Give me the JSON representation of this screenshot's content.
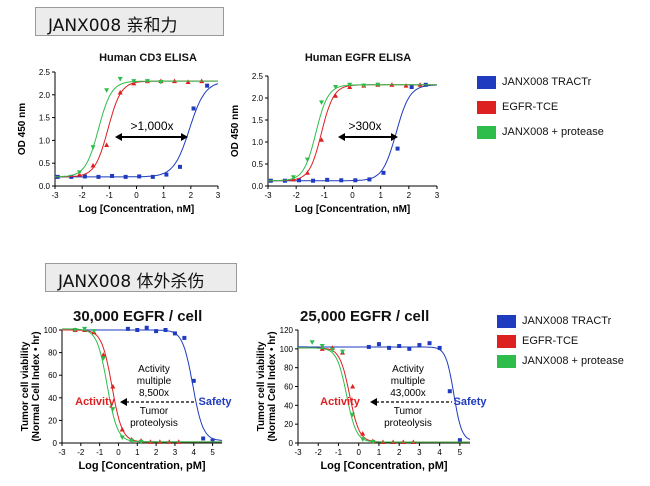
{
  "sections": {
    "binding": "JANX008 亲和力",
    "killing": "JANX008 体外杀伤"
  },
  "colors": {
    "tractr": "#1f3bbf",
    "tce": "#dd2020",
    "protease": "#2ebd4a"
  },
  "legend_top": [
    "JANX008 TRACTr",
    "EGFR-TCE",
    "JANX008 + protease"
  ],
  "legend_bottom": [
    "JANX008 TRACTr",
    "EGFR-TCE",
    "JANX008 + protease"
  ],
  "chart_data": [
    {
      "type": "scatter",
      "title": "Human CD3 ELISA",
      "xlabel": "Log [Concentration, nM]",
      "ylabel": "OD 450 nm",
      "xlim": [
        -3,
        3
      ],
      "ylim": [
        0,
        2.5
      ],
      "xticks": [
        "-3",
        "-2",
        "-1",
        "0",
        "1",
        "2",
        "3"
      ],
      "yticks": [
        "0.0",
        "0.5",
        "1.0",
        "1.5",
        "2.0",
        "2.5"
      ],
      "annotation": ">1,000x",
      "series": [
        {
          "name": "JANX008 TRACTr",
          "color": "tractr",
          "marker": "square",
          "bottom": 0.2,
          "top": 2.3,
          "ec50": 1.95,
          "hill": 1.5,
          "x": [
            -2.9,
            -2.4,
            -1.9,
            -1.4,
            -0.9,
            -0.4,
            0.1,
            0.6,
            1.1,
            1.6,
            2.1,
            2.6
          ],
          "y": [
            0.2,
            0.2,
            0.21,
            0.2,
            0.22,
            0.2,
            0.21,
            0.2,
            0.25,
            0.42,
            1.7,
            2.2
          ]
        },
        {
          "name": "EGFR-TCE",
          "color": "tce",
          "marker": "triangle",
          "bottom": 0.2,
          "top": 2.3,
          "ec50": -1.05,
          "hill": 1.8,
          "x": [
            -2.1,
            -1.6,
            -1.1,
            -0.6,
            -0.1,
            0.4,
            0.9,
            1.4,
            1.9,
            2.4
          ],
          "y": [
            0.25,
            0.45,
            0.9,
            2.05,
            2.25,
            2.3,
            2.3,
            2.3,
            2.28,
            2.3
          ]
        },
        {
          "name": "JANX008 + protease",
          "color": "protease",
          "marker": "triangle-down",
          "bottom": 0.2,
          "top": 2.3,
          "ec50": -1.4,
          "hill": 1.8,
          "x": [
            -2.1,
            -1.6,
            -1.1,
            -0.6,
            -0.1,
            0.4,
            0.9
          ],
          "y": [
            0.3,
            0.85,
            2.1,
            2.35,
            2.3,
            2.3,
            2.28
          ]
        }
      ]
    },
    {
      "type": "scatter",
      "title": "Human EGFR ELISA",
      "xlabel": "Log [Concentration, nM]",
      "ylabel": "OD 450 nm",
      "xlim": [
        -3,
        3
      ],
      "ylim": [
        0,
        2.5
      ],
      "xticks": [
        "-3",
        "-2",
        "-1",
        "0",
        "1",
        "2",
        "3"
      ],
      "yticks": [
        "0.0",
        "0.5",
        "1.0",
        "1.5",
        "2.0",
        "2.5"
      ],
      "annotation": ">300x",
      "series": [
        {
          "name": "JANX008 TRACTr",
          "color": "tractr",
          "marker": "square",
          "bottom": 0.12,
          "top": 2.3,
          "ec50": 1.55,
          "hill": 1.8,
          "x": [
            -2.9,
            -2.4,
            -1.9,
            -1.4,
            -0.9,
            -0.4,
            0.1,
            0.6,
            1.1,
            1.6,
            2.1,
            2.6
          ],
          "y": [
            0.12,
            0.12,
            0.13,
            0.12,
            0.14,
            0.13,
            0.13,
            0.15,
            0.3,
            0.85,
            2.25,
            2.3
          ]
        },
        {
          "name": "EGFR-TCE",
          "color": "tce",
          "marker": "triangle",
          "bottom": 0.12,
          "top": 2.3,
          "ec50": -1.1,
          "hill": 2.0,
          "x": [
            -2.1,
            -1.6,
            -1.1,
            -0.6,
            -0.1,
            0.4,
            0.9,
            1.4,
            1.9,
            2.4
          ],
          "y": [
            0.15,
            0.3,
            1.05,
            2.05,
            2.25,
            2.28,
            2.3,
            2.3,
            2.28,
            2.3
          ]
        },
        {
          "name": "JANX008 + protease",
          "color": "protease",
          "marker": "triangle-down",
          "bottom": 0.12,
          "top": 2.3,
          "ec50": -1.3,
          "hill": 2.0,
          "x": [
            -2.1,
            -1.6,
            -1.1,
            -0.6,
            -0.1,
            0.4,
            0.9
          ],
          "y": [
            0.2,
            0.6,
            1.9,
            2.25,
            2.3,
            2.28,
            2.3
          ]
        }
      ]
    },
    {
      "type": "scatter",
      "title": "30,000 EGFR / cell",
      "xlabel": "Log [Concentration, pM]",
      "ylabel": "Tumor cell viability",
      "ylabel2": "(Normal Cell Index • hr)",
      "xlim": [
        -3,
        5.5
      ],
      "ylim": [
        0,
        100
      ],
      "xticks": [
        "-3",
        "-2",
        "-1",
        "0",
        "1",
        "2",
        "3",
        "4",
        "5"
      ],
      "yticks": [
        "0",
        "20",
        "40",
        "60",
        "80",
        "100"
      ],
      "label_activity": "Activity",
      "label_safety": "Safety",
      "annotation_lines": [
        "Activity",
        "multiple",
        "8,500x",
        "Tumor",
        "proteolysis"
      ],
      "series": [
        {
          "name": "JANX008 TRACTr",
          "color": "tractr",
          "marker": "square",
          "bottom": 2,
          "top": 100,
          "ec50": 3.95,
          "hill": 1.6,
          "x": [
            0.5,
            1.0,
            1.5,
            2.0,
            2.5,
            3.0,
            3.5,
            4.0,
            4.5,
            5.0
          ],
          "y": [
            101,
            100,
            102,
            99,
            100,
            97,
            93,
            55,
            4,
            2
          ]
        },
        {
          "name": "EGFR-TCE",
          "color": "tce",
          "marker": "triangle",
          "bottom": 1,
          "top": 100,
          "ec50": -0.35,
          "hill": 1.6,
          "x": [
            -2.3,
            -1.8,
            -1.3,
            -0.8,
            -0.3,
            0.2,
            0.7,
            1.2,
            1.7,
            2.2,
            2.7,
            3.2
          ],
          "y": [
            100,
            100,
            98,
            78,
            50,
            12,
            3,
            2,
            1,
            1,
            1,
            1
          ]
        },
        {
          "name": "JANX008 + protease",
          "color": "protease",
          "marker": "triangle-down",
          "bottom": 1,
          "top": 101,
          "ec50": -0.6,
          "hill": 1.6,
          "x": [
            -2.3,
            -1.8,
            -1.3,
            -0.8,
            -0.3,
            0.2,
            0.7,
            1.2
          ],
          "y": [
            100,
            101,
            99,
            75,
            30,
            5,
            2,
            1
          ]
        }
      ]
    },
    {
      "type": "scatter",
      "title": "25,000 EGFR / cell",
      "xlabel": "Log [Concentration, pM]",
      "ylabel": "Tumor cell viability",
      "ylabel2": "(Normal Cell Index • hr)",
      "xlim": [
        -3,
        5.5
      ],
      "ylim": [
        0,
        120
      ],
      "xticks": [
        "-3",
        "-2",
        "-1",
        "0",
        "1",
        "2",
        "3",
        "4",
        "5"
      ],
      "yticks": [
        "0",
        "20",
        "40",
        "60",
        "80",
        "100",
        "120"
      ],
      "label_activity": "Activity",
      "label_safety": "Safety",
      "annotation_lines": [
        "Activity",
        "multiple",
        "43,000x",
        "Tumor",
        "proteolysis"
      ],
      "series": [
        {
          "name": "JANX008 TRACTr",
          "color": "tractr",
          "marker": "square",
          "bottom": 2,
          "top": 102,
          "ec50": 4.7,
          "hill": 2.2,
          "x": [
            0.5,
            1.0,
            1.5,
            2.0,
            2.5,
            3.0,
            3.5,
            4.0,
            4.5,
            5.0
          ],
          "y": [
            102,
            105,
            101,
            103,
            100,
            104,
            106,
            101,
            55,
            3
          ]
        },
        {
          "name": "EGFR-TCE",
          "color": "tce",
          "marker": "triangle",
          "bottom": 1,
          "top": 101,
          "ec50": -0.45,
          "hill": 1.8,
          "x": [
            -1.8,
            -1.3,
            -0.8,
            -0.3,
            0.2,
            0.7,
            1.2,
            1.7,
            2.2,
            2.7
          ],
          "y": [
            100,
            101,
            96,
            60,
            10,
            2,
            1,
            1,
            1,
            1
          ]
        },
        {
          "name": "JANX008 + protease",
          "color": "protease",
          "marker": "triangle-down",
          "bottom": 1,
          "top": 101,
          "ec50": -0.6,
          "hill": 1.8,
          "x": [
            -2.3,
            -1.8,
            -1.3,
            -0.8,
            -0.3,
            0.2,
            0.7
          ],
          "y": [
            107,
            103,
            99,
            97,
            30,
            4,
            1
          ]
        }
      ]
    }
  ]
}
